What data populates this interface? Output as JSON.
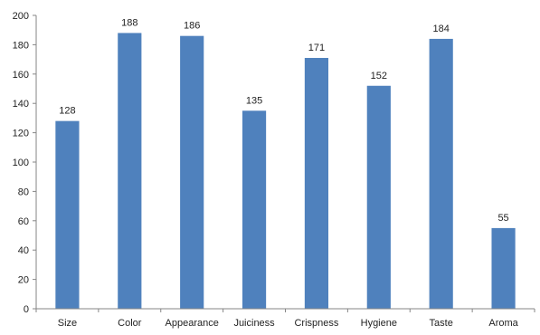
{
  "chart_data": {
    "type": "bar",
    "categories": [
      "Size",
      "Color",
      "Appearance",
      "Juiciness",
      "Crispness",
      "Hygiene",
      "Taste",
      "Aroma"
    ],
    "values": [
      128,
      188,
      186,
      135,
      171,
      152,
      184,
      55
    ],
    "ylim": [
      0,
      200
    ],
    "yticks": [
      0,
      20,
      40,
      60,
      80,
      100,
      120,
      140,
      160,
      180,
      200
    ],
    "grid": false,
    "data_labels": true,
    "colors": {
      "bar": "#4F81BD",
      "axis": "#868686",
      "text": "#1f1f1f"
    }
  }
}
